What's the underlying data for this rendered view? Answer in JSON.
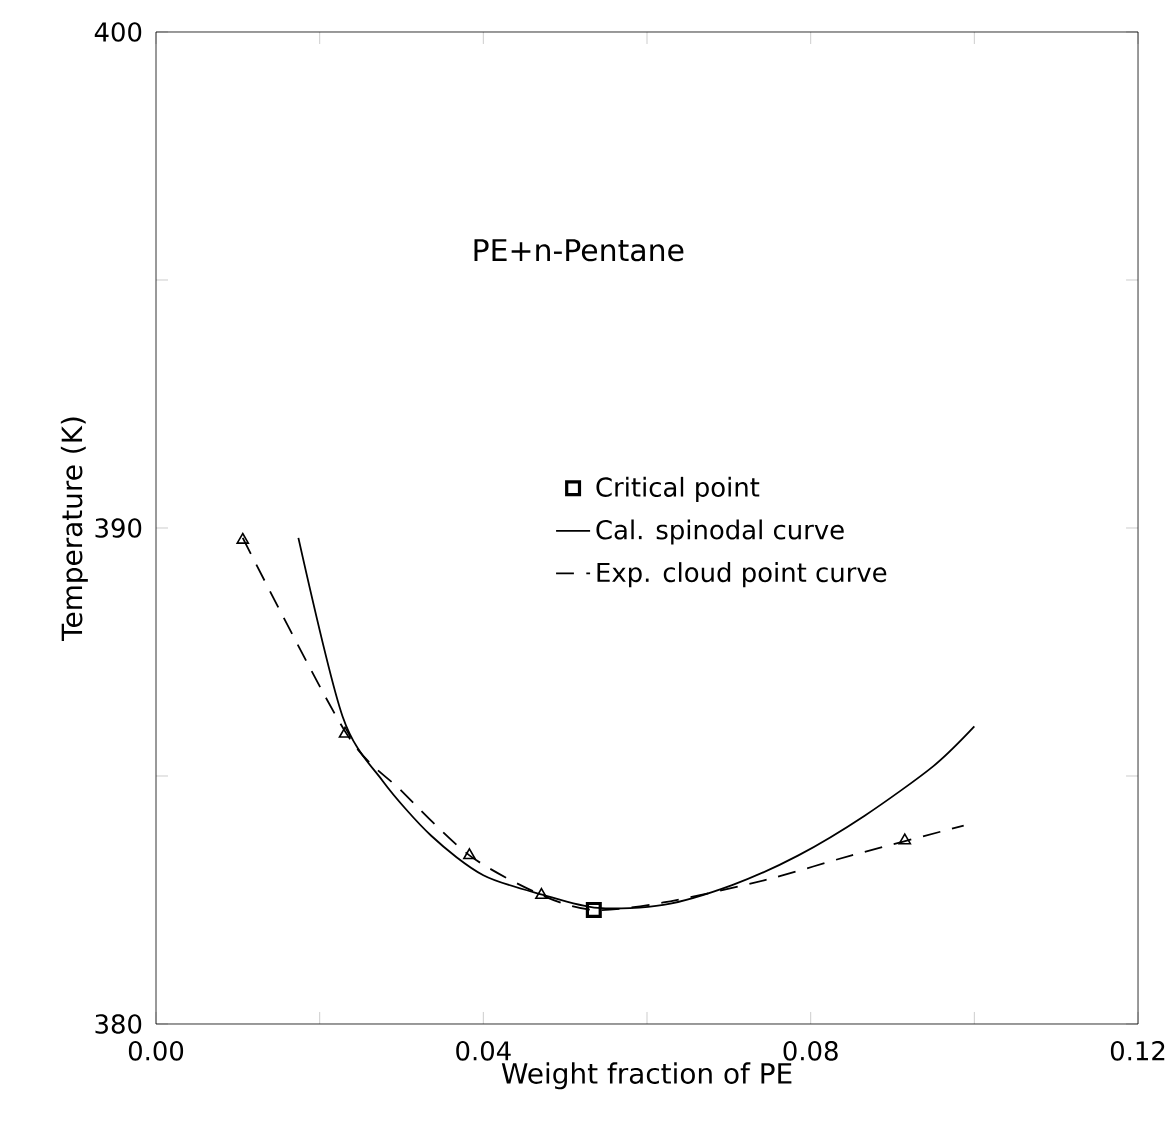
{
  "chart_data": {
    "type": "line",
    "xlabel": "Weight fraction of PE",
    "ylabel": "Temperature (K)",
    "annotations": [
      "PE+n-Pentane"
    ],
    "xlim": [
      0,
      0.12
    ],
    "ylim": [
      380,
      400
    ],
    "xticks": [
      {
        "value": 0,
        "label": "0.00"
      },
      {
        "value": 0.02,
        "label": null
      },
      {
        "value": 0.04,
        "label": "0.04"
      },
      {
        "value": 0.06,
        "label": null
      },
      {
        "value": 0.08,
        "label": "0.08"
      },
      {
        "value": 0.1,
        "label": null
      },
      {
        "value": 0.12,
        "label": "0.12"
      }
    ],
    "yticks": [
      380,
      {
        "value": 385,
        "label": null
      },
      390,
      {
        "value": 395,
        "label": null
      },
      400
    ],
    "legend": "center",
    "grid": false,
    "series": [
      {
        "name": "Critical point",
        "type": "scatter",
        "marker": "square",
        "color": "#000000",
        "x": [
          0.0535
        ],
        "values": [
          382.3
        ]
      },
      {
        "name": "Cal. spinodal curve",
        "marker": "none",
        "line_style": "solid",
        "color": "#000000",
        "x": [
          0.0174,
          0.0228,
          0.0277,
          0.0336,
          0.04,
          0.0474,
          0.054,
          0.062,
          0.0704,
          0.0785,
          0.0866,
          0.095,
          0.1
        ],
        "values": [
          389.8,
          386.2,
          384.9,
          383.8,
          383.0,
          382.6,
          382.34,
          382.4,
          382.8,
          383.4,
          384.2,
          385.2,
          386.0
        ]
      },
      {
        "name": "Exp. cloud point curve",
        "marker": "none",
        "line_style": "dashed",
        "color": "#000000",
        "x": [
          0.0106,
          0.0231,
          0.03,
          0.0383,
          0.0471,
          0.0535,
          0.062,
          0.0744,
          0.085,
          0.0987
        ],
        "values": [
          389.8,
          385.9,
          384.7,
          383.4,
          382.6,
          382.3,
          382.45,
          382.9,
          383.4,
          384.0
        ]
      },
      {
        "type": "scatter",
        "marker": "triangle",
        "color": "#000000",
        "x": [
          0.0106,
          0.0231,
          0.0383,
          0.0471,
          0.0915
        ],
        "values": [
          389.76,
          385.85,
          383.4,
          382.6,
          383.7
        ]
      }
    ]
  }
}
